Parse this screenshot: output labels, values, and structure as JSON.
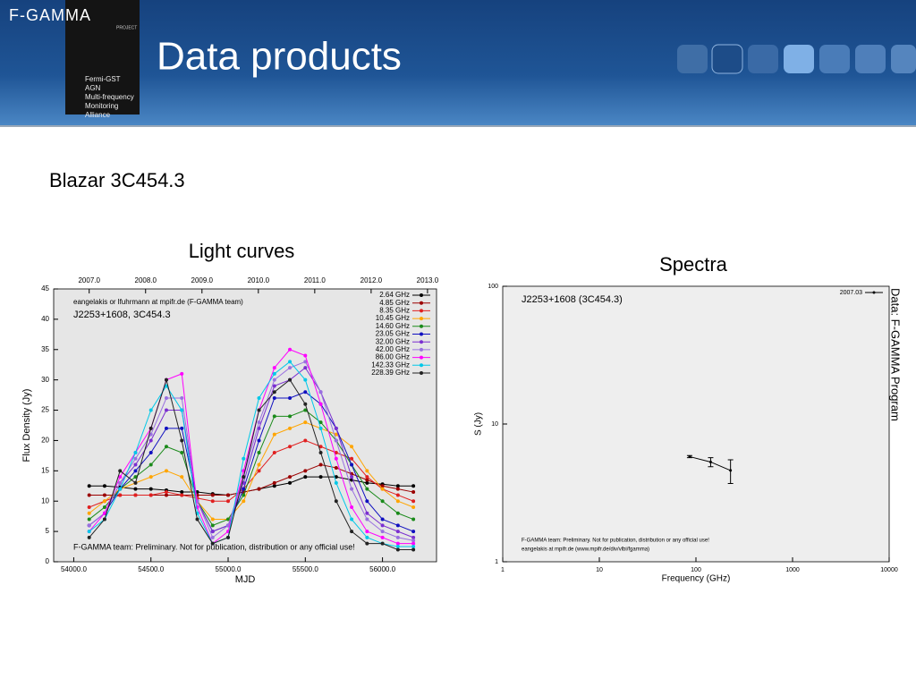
{
  "header": {
    "logo": "F-GAMMA",
    "logo_sub": "PROJECT",
    "badge": [
      "Fermi-GST",
      "AGN",
      "Multi-frequency",
      "Monitoring",
      "Alliance"
    ],
    "title": "Data products"
  },
  "subtitle": "Blazar 3C454.3",
  "side_note": "Data: F-GAMMA Program",
  "chart_data": [
    {
      "type": "line",
      "caption": "Light curves",
      "annotations": [
        "eangelakis or lfuhrmann at mpifr.de (F-GAMMA team)",
        "J2253+1608, 3C454.3",
        "F-GAMMA team: Preliminary. Not for publication, distribution or any official use!"
      ],
      "x_label": "MJD",
      "y_label": "Flux Density (Jy)",
      "background": "#e6e6e6",
      "legend": "upper right",
      "xlim": [
        53870,
        56350
      ],
      "xticks": [
        {
          "value": 54000,
          "label": "54000.0"
        },
        {
          "value": 54500,
          "label": "54500.0"
        },
        {
          "value": 55000,
          "label": "55000.0"
        },
        {
          "value": 55500,
          "label": "55500.0"
        },
        {
          "value": 56000,
          "label": "56000.0"
        }
      ],
      "x2lim": [
        2006.37,
        2013.16
      ],
      "x2ticks": [
        {
          "value": 2007,
          "label": "2007.0"
        },
        {
          "value": 2008,
          "label": "2008.0"
        },
        {
          "value": 2009,
          "label": "2009.0"
        },
        {
          "value": 2010,
          "label": "2010.0"
        },
        {
          "value": 2011,
          "label": "2011.0"
        },
        {
          "value": 2012,
          "label": "2012.0"
        },
        {
          "value": 2013,
          "label": "2013.0"
        }
      ],
      "ylim": [
        0,
        45
      ],
      "yticks": [
        0,
        5,
        10,
        15,
        20,
        25,
        30,
        35,
        40,
        45
      ],
      "x": [
        54100,
        54200,
        54300,
        54400,
        54500,
        54600,
        54700,
        54800,
        54900,
        55000,
        55100,
        55200,
        55300,
        55400,
        55500,
        55600,
        55700,
        55800,
        55900,
        56000,
        56100,
        56200
      ],
      "series": [
        {
          "name": "2.64 GHz",
          "color": "#000000",
          "values": [
            12.5,
            12.5,
            12.3,
            12,
            12,
            11.8,
            11.5,
            11.5,
            11.2,
            11,
            11.5,
            12,
            12.5,
            13,
            14,
            14,
            14,
            13.5,
            13,
            12.8,
            12.5,
            12.5
          ]
        },
        {
          "name": "4.85 GHz",
          "color": "#9b0000",
          "values": [
            11,
            11,
            11,
            11,
            11,
            11,
            11,
            11,
            11,
            11,
            11.5,
            12,
            13,
            14,
            15,
            16,
            15.5,
            14.5,
            13.5,
            12.5,
            12,
            11.5
          ]
        },
        {
          "name": "8.35 GHz",
          "color": "#e02020",
          "values": [
            9,
            10,
            11,
            11,
            11,
            11.5,
            11,
            10.5,
            10,
            10,
            12,
            15,
            18,
            19,
            20,
            19,
            18,
            17,
            14,
            12,
            11,
            10
          ]
        },
        {
          "name": "10.45 GHz",
          "color": "#ffa500",
          "values": [
            8,
            10,
            12,
            13,
            14,
            15,
            14,
            10,
            7,
            7,
            10,
            16,
            21,
            22,
            23,
            22,
            21,
            19,
            15,
            12,
            10,
            9
          ]
        },
        {
          "name": "14.60 GHz",
          "color": "#1a8a1a",
          "values": [
            7,
            9,
            12,
            14,
            16,
            19,
            18,
            10,
            6,
            7,
            11,
            18,
            24,
            24,
            25,
            23,
            20,
            16,
            12,
            10,
            8,
            7
          ]
        },
        {
          "name": "23.05 GHz",
          "color": "#1010c0",
          "values": [
            6,
            8,
            12,
            15,
            18,
            22,
            22,
            10,
            5,
            6,
            12,
            20,
            27,
            27,
            28,
            26,
            22,
            16,
            10,
            7,
            6,
            5
          ]
        },
        {
          "name": "32.00 GHz",
          "color": "#7b2fd0",
          "values": [
            6,
            8,
            13,
            16,
            20,
            25,
            25,
            10,
            5,
            6,
            13,
            22,
            29,
            30,
            32,
            28,
            22,
            14,
            8,
            6,
            5,
            4
          ]
        },
        {
          "name": "42.00 GHz",
          "color": "#9a70e0",
          "values": [
            6,
            8,
            13,
            17,
            21,
            27,
            27,
            10,
            4,
            6,
            14,
            23,
            30,
            32,
            33,
            28,
            20,
            12,
            7,
            5,
            4,
            3.5
          ]
        },
        {
          "name": "86.00 GHz",
          "color": "#ff00ff",
          "values": [
            5,
            8,
            14,
            18,
            22,
            30,
            31,
            9,
            3,
            5,
            15,
            25,
            32,
            35,
            34,
            26,
            17,
            9,
            5,
            4,
            3,
            3
          ]
        },
        {
          "name": "142.33 GHz",
          "color": "#00c8e8",
          "values": [
            5,
            7,
            12,
            18,
            25,
            29,
            25,
            8,
            3,
            4,
            17,
            27,
            31,
            33,
            30,
            22,
            13,
            7,
            4,
            3,
            2.5,
            2.5
          ]
        },
        {
          "name": "228.39 GHz",
          "color": "#222222",
          "values": [
            4,
            7,
            15,
            13,
            22,
            30,
            20,
            7,
            3,
            4,
            14,
            25,
            28,
            30,
            26,
            18,
            10,
            5,
            3,
            3,
            2,
            2
          ]
        }
      ]
    },
    {
      "type": "line",
      "caption": "Spectra",
      "annotations": [
        "J2253+1608 (3C454.3)",
        "F-GAMMA team: Preliminary. Not for publication, distribution or any official use!",
        "eangelakis at mpifr.de (www.mpifr.de/div/vlbi/fgamma)"
      ],
      "x_label": "Frequency (GHz)",
      "y_label": "S (Jy)",
      "background": "#eeeeee",
      "legend": "upper right",
      "log_scale": true,
      "xlim": [
        1,
        10000
      ],
      "xticks": [
        1,
        10,
        100,
        1000,
        10000
      ],
      "ylim": [
        1,
        100
      ],
      "yticks": [
        1,
        10,
        100
      ],
      "x": [
        86,
        142,
        228
      ],
      "series": [
        {
          "name": "2007.03",
          "color": "#000000",
          "values": [
            5.8,
            5.3,
            4.6
          ],
          "errors": [
            0.1,
            0.4,
            0.9
          ]
        }
      ]
    }
  ]
}
